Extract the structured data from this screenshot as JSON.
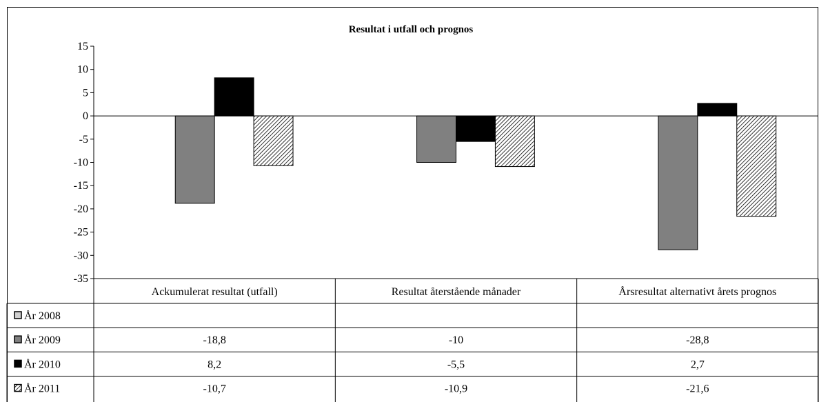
{
  "chart_data": {
    "type": "bar",
    "title": "Resultat i utfall och prognos",
    "categories": [
      "Ackumulerat resultat (utfall)",
      "Resultat återstående månader",
      "Årsresultat alternativt årets prognos"
    ],
    "ylim": [
      -35,
      15
    ],
    "yticks": [
      15,
      10,
      5,
      0,
      -5,
      -10,
      -15,
      -20,
      -25,
      -30,
      -35
    ],
    "grid": false,
    "legend": "data-table",
    "series": [
      {
        "name": "År 2008",
        "values": [
          null,
          null,
          null
        ],
        "labels": [
          "",
          "",
          ""
        ],
        "fill": "#d0d0d0",
        "pattern": "none"
      },
      {
        "name": "År 2009",
        "values": [
          -18.8,
          -10,
          -28.8
        ],
        "labels": [
          "-18,8",
          "-10",
          "-28,8"
        ],
        "fill": "#808080",
        "pattern": "none"
      },
      {
        "name": "År 2010",
        "values": [
          8.2,
          -5.5,
          2.7
        ],
        "labels": [
          "8,2",
          "-5,5",
          "2,7"
        ],
        "fill": "#000000",
        "pattern": "none"
      },
      {
        "name": "År 2011",
        "values": [
          -10.7,
          -10.9,
          -21.6
        ],
        "labels": [
          "-10,7",
          "-10,9",
          "-21,6"
        ],
        "fill": "#ffffff",
        "pattern": "diagonal-hatch"
      }
    ]
  }
}
